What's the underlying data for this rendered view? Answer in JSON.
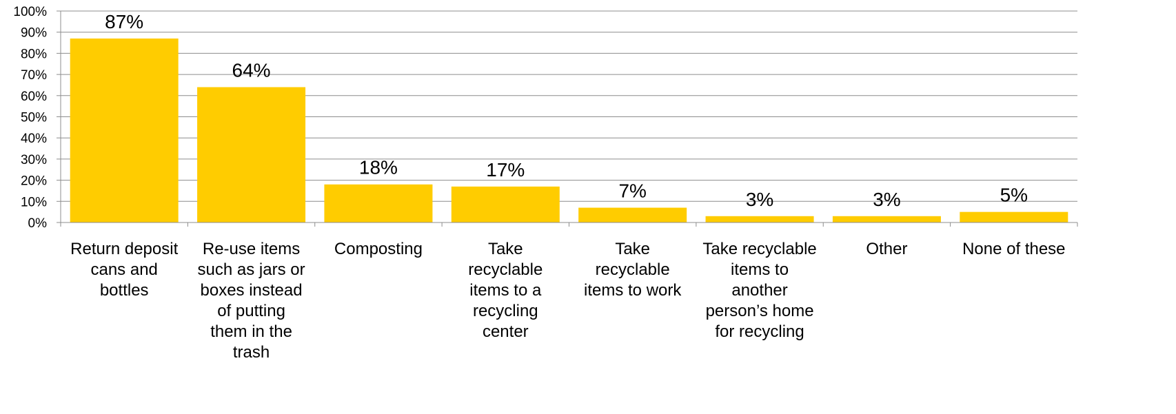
{
  "chart_data": {
    "type": "bar",
    "categories": [
      [
        "Return deposit",
        "cans and",
        "bottles"
      ],
      [
        "Re-use items",
        "such as jars or",
        "boxes instead",
        "of putting",
        "them in the",
        "trash"
      ],
      [
        "Composting"
      ],
      [
        "Take",
        "recyclable",
        "items to a",
        "recycling",
        "center"
      ],
      [
        "Take",
        "recyclable",
        "items to work"
      ],
      [
        "Take recyclable",
        "items to",
        "another",
        "person’s home",
        "for recycling"
      ],
      [
        "Other"
      ],
      [
        "None of these"
      ]
    ],
    "values": [
      87,
      64,
      18,
      17,
      7,
      3,
      3,
      5
    ],
    "data_labels": [
      "87%",
      "64%",
      "18%",
      "17%",
      "7%",
      "3%",
      "3%",
      "5%"
    ],
    "ylim": [
      0,
      100
    ],
    "yticks": [
      0,
      10,
      20,
      30,
      40,
      50,
      60,
      70,
      80,
      90,
      100
    ],
    "ytick_labels": [
      "0%",
      "10%",
      "20%",
      "30%",
      "40%",
      "50%",
      "60%",
      "70%",
      "80%",
      "90%",
      "100%"
    ],
    "grid": true,
    "bar_color": "#FFCC00",
    "title": "",
    "xlabel": "",
    "ylabel": ""
  }
}
